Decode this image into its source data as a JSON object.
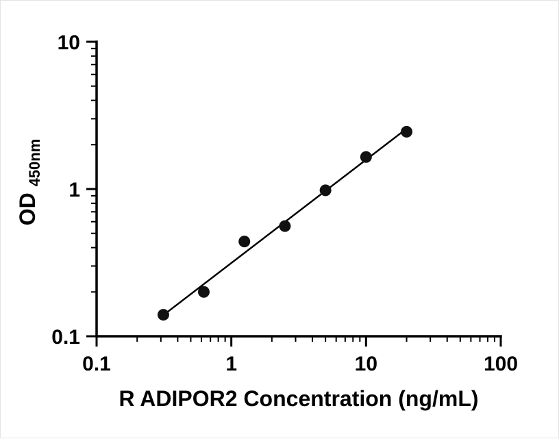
{
  "chart_data": {
    "type": "scatter",
    "subtype": "standard-curve-with-fit-line",
    "title": "",
    "xlabel": "R ADIPOR2 Concentration (ng/mL)",
    "ylabel_main": "OD",
    "ylabel_sub": "450nm",
    "x": [
      0.313,
      0.625,
      1.25,
      2.5,
      5,
      10,
      20
    ],
    "y": [
      0.14,
      0.2,
      0.44,
      0.56,
      0.98,
      1.65,
      2.45
    ],
    "x_scale": "log",
    "y_scale": "log",
    "xlim": [
      0.1,
      100
    ],
    "ylim": [
      0.1,
      10
    ],
    "x_ticks": [
      0.1,
      1,
      10,
      100
    ],
    "x_tick_labels": [
      "0.1",
      "1",
      "10",
      "100"
    ],
    "y_ticks": [
      0.1,
      1,
      10
    ],
    "y_tick_labels": [
      "0.1",
      "1",
      "10"
    ],
    "grid": "off",
    "legend": "none",
    "fit": "power-law (linear in log-log space) through points, drawn from first to last x",
    "marker_color": "#111111",
    "line_color": "#000000",
    "axis_color": "#000000"
  }
}
